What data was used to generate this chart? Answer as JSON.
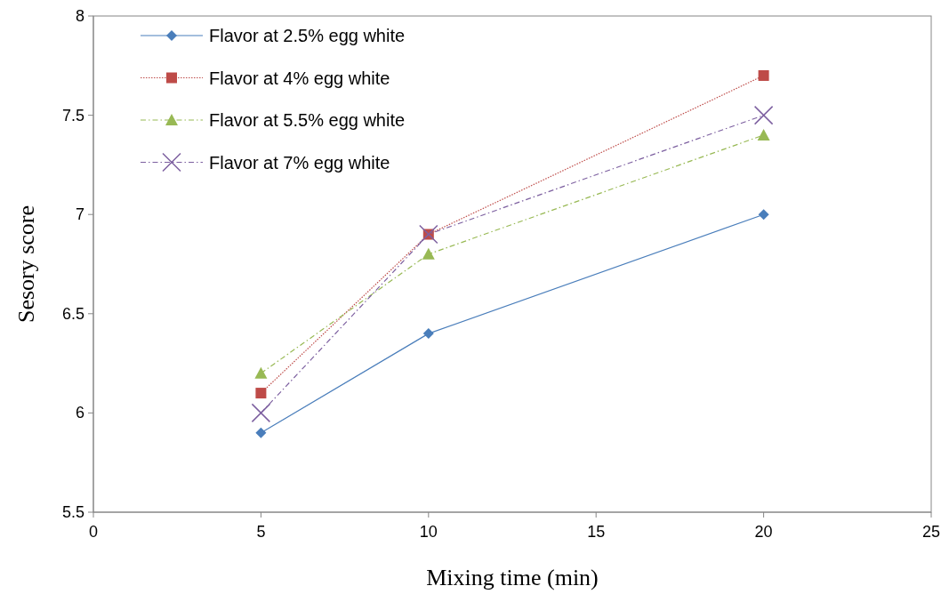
{
  "chart_data": {
    "type": "line",
    "xlabel": "Mixing time (min)",
    "ylabel": "Sesory score",
    "x": [
      5,
      10,
      20
    ],
    "xlim": [
      0,
      25
    ],
    "xticks": [
      0,
      5,
      10,
      15,
      20,
      25
    ],
    "ylim": [
      5.5,
      8
    ],
    "yticks": [
      5.5,
      6,
      6.5,
      7,
      7.5,
      8
    ],
    "grid": false,
    "legend": "top left",
    "series": [
      {
        "name": "Flavor at 2.5% egg white",
        "color": "#4a7ebb",
        "values": [
          5.9,
          6.4,
          7.0
        ],
        "marker": "diamond",
        "line_style": "solid"
      },
      {
        "name": "Flavor at 4% egg white",
        "color": "#be4b48",
        "values": [
          6.1,
          6.9,
          7.7
        ],
        "marker": "square",
        "line_style": "dotted"
      },
      {
        "name": "Flavor at 5.5% egg white",
        "color": "#98b954",
        "values": [
          6.2,
          6.8,
          7.4
        ],
        "marker": "triangle",
        "line_style": "dashed"
      },
      {
        "name": "Flavor at 7% egg white",
        "color": "#7d60a0",
        "values": [
          6.0,
          6.9,
          7.5
        ],
        "marker": "cross",
        "line_style": "dashed"
      }
    ]
  }
}
